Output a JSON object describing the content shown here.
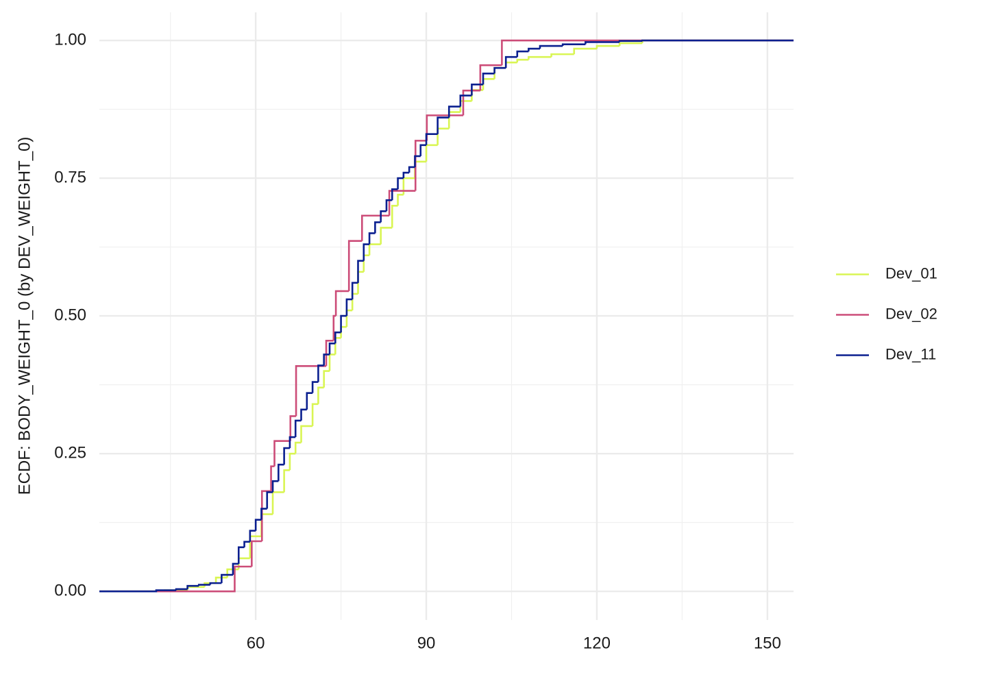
{
  "chart_data": {
    "type": "ecdf",
    "y_label": "ECDF: BODY_WEIGHT_0 (by DEV_WEIGHT_0)",
    "xlim": [
      32.5,
      154.6
    ],
    "xticks": [
      60,
      90,
      120,
      150
    ],
    "ylim": [
      -0.052,
      1.051
    ],
    "yticks": [
      {
        "value": 0,
        "label": "0.00"
      },
      {
        "value": 0.25,
        "label": "0.25"
      },
      {
        "value": 0.5,
        "label": "0.50"
      },
      {
        "value": 0.75,
        "label": "0.75"
      },
      {
        "value": 1,
        "label": "1.00"
      }
    ],
    "grid": true,
    "legend": "right",
    "series": [
      {
        "name": "Dev_01",
        "color": "#d9f553",
        "x": [
          44,
          48,
          51,
          53,
          55,
          57,
          59,
          61,
          63,
          65,
          66,
          67,
          68,
          70,
          71,
          72,
          73,
          74,
          75,
          76,
          77,
          78,
          79,
          80,
          82,
          84,
          85,
          86,
          88,
          90,
          92,
          94,
          96,
          98,
          100,
          102,
          104,
          106,
          108,
          112,
          116,
          120,
          124,
          128
        ],
        "values": [
          0.002,
          0.008,
          0.015,
          0.025,
          0.04,
          0.06,
          0.1,
          0.14,
          0.18,
          0.22,
          0.25,
          0.27,
          0.3,
          0.34,
          0.37,
          0.4,
          0.43,
          0.46,
          0.48,
          0.51,
          0.54,
          0.58,
          0.61,
          0.63,
          0.66,
          0.7,
          0.72,
          0.75,
          0.78,
          0.81,
          0.84,
          0.87,
          0.89,
          0.91,
          0.93,
          0.95,
          0.96,
          0.965,
          0.97,
          0.975,
          0.985,
          0.99,
          0.995,
          1.0
        ]
      },
      {
        "name": "Dev_02",
        "color": "#cc4c78",
        "x": [
          56.3,
          59.3,
          61.1,
          62.7,
          63.3,
          66.1,
          67.1,
          72.4,
          73.7,
          74.1,
          76.4,
          78.7,
          83.5,
          88.1,
          90.1,
          96.5,
          99.5,
          103.3
        ],
        "values": [
          0.045,
          0.091,
          0.182,
          0.227,
          0.273,
          0.318,
          0.409,
          0.455,
          0.5,
          0.545,
          0.636,
          0.682,
          0.727,
          0.818,
          0.864,
          0.909,
          0.955,
          1.0
        ]
      },
      {
        "name": "Dev_11",
        "color": "#0a1f8f",
        "x": [
          42.5,
          46,
          48,
          50,
          52,
          54,
          56,
          57,
          58,
          59,
          60,
          61,
          62,
          63,
          64,
          65,
          66,
          67,
          68,
          69,
          70,
          71,
          72,
          73,
          74,
          75,
          76,
          77,
          78,
          79,
          80,
          81,
          82,
          83,
          84,
          85,
          86,
          87,
          88,
          89,
          90,
          92,
          94,
          96,
          98,
          100,
          102,
          104,
          106,
          108,
          110,
          114,
          118,
          124,
          128
        ],
        "values": [
          0.002,
          0.004,
          0.01,
          0.012,
          0.015,
          0.03,
          0.05,
          0.08,
          0.09,
          0.11,
          0.13,
          0.15,
          0.18,
          0.2,
          0.23,
          0.26,
          0.28,
          0.31,
          0.33,
          0.36,
          0.38,
          0.41,
          0.43,
          0.45,
          0.47,
          0.5,
          0.53,
          0.56,
          0.6,
          0.63,
          0.65,
          0.67,
          0.69,
          0.71,
          0.73,
          0.75,
          0.76,
          0.77,
          0.79,
          0.81,
          0.83,
          0.86,
          0.88,
          0.9,
          0.92,
          0.94,
          0.95,
          0.97,
          0.98,
          0.985,
          0.99,
          0.993,
          0.997,
          0.999,
          1.0
        ]
      }
    ]
  }
}
